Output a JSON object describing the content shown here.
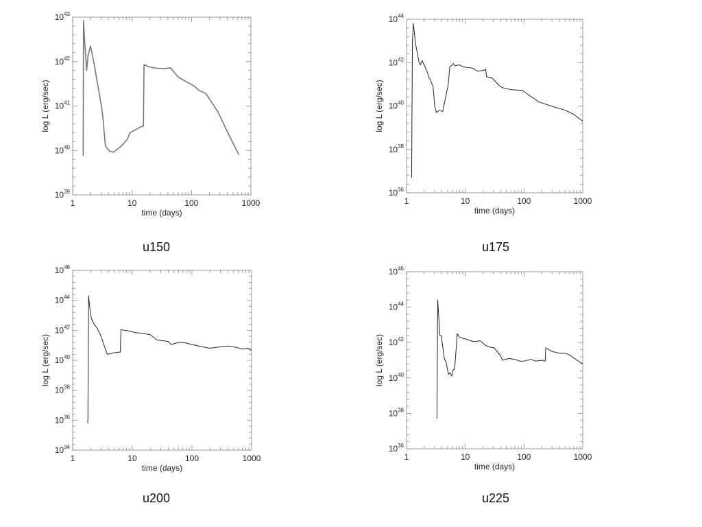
{
  "chart_data": [
    {
      "type": "line",
      "caption": "u150",
      "xlabel": "time (days)",
      "ylabel": "log L (erg/sec)",
      "xscale": "log",
      "yscale": "log",
      "xlim": [
        1,
        1000
      ],
      "ylim_exp": [
        39,
        43
      ],
      "xticks": [
        "1",
        "10",
        "100",
        "1000"
      ],
      "yticks_exp": [
        39,
        40,
        41,
        42,
        43
      ],
      "line_color": "#777777",
      "series": [
        {
          "x": [
            1.5,
            1.52,
            1.6,
            1.72,
            1.82,
            2.0,
            2.3,
            2.7,
            3.05,
            3.25,
            3.55,
            4.2,
            4.9,
            5.7,
            6.6,
            8.3,
            9.2,
            10.9,
            14.0,
            15.5,
            15.9,
            19.5,
            26.0,
            34.6,
            44.2,
            60.0,
            73.6,
            111.4,
            134.0,
            174.8,
            275.7,
            416.0,
            627.6
          ],
          "y_exp": [
            39.88,
            42.92,
            42.4,
            41.8,
            42.15,
            42.35,
            41.95,
            41.4,
            41.0,
            40.7,
            40.1,
            39.98,
            39.96,
            40.03,
            40.1,
            40.25,
            40.4,
            40.45,
            40.53,
            40.55,
            41.93,
            41.88,
            41.85,
            41.84,
            41.86,
            41.65,
            41.58,
            41.45,
            41.35,
            41.28,
            40.88,
            40.38,
            39.9
          ]
        }
      ]
    },
    {
      "type": "line",
      "caption": "u175",
      "xlabel": "time (days)",
      "ylabel": "log L (erg/sec)",
      "xscale": "log",
      "yscale": "log",
      "xlim": [
        1,
        1000
      ],
      "ylim_exp": [
        36,
        44
      ],
      "xticks": [
        "1",
        "10",
        "100",
        "1000"
      ],
      "yticks_exp": [
        36,
        38,
        40,
        42,
        44
      ],
      "line_color": "#222222",
      "series": [
        {
          "x": [
            1.22,
            1.26,
            1.31,
            1.42,
            1.64,
            1.73,
            1.84,
            2.08,
            2.33,
            2.4,
            2.5,
            2.83,
            3.02,
            3.22,
            3.58,
            4.14,
            4.5,
            5.1,
            5.45,
            6.29,
            6.73,
            7.78,
            9.32,
            10.9,
            13.2,
            16.3,
            21.5,
            22.2,
            23.1,
            28.4,
            37.7,
            42.4,
            50.8,
            61.3,
            93.0,
            108.1,
            128.7,
            155.0,
            173.4,
            199.1,
            289.5,
            512.7,
            719.1,
            1000.0
          ],
          "y_exp": [
            36.7,
            43.0,
            43.8,
            42.9,
            42.0,
            41.9,
            42.1,
            41.8,
            41.45,
            41.3,
            41.25,
            40.9,
            40.0,
            39.7,
            39.8,
            39.75,
            40.25,
            40.95,
            41.8,
            41.95,
            41.85,
            41.9,
            41.8,
            41.78,
            41.75,
            41.6,
            41.65,
            41.7,
            41.35,
            41.3,
            40.95,
            40.85,
            40.8,
            40.75,
            40.72,
            40.6,
            40.45,
            40.32,
            40.2,
            40.15,
            40.0,
            39.8,
            39.6,
            39.3
          ]
        }
      ]
    },
    {
      "type": "line",
      "caption": "u200",
      "xlabel": "time (days)",
      "ylabel": "log L (erg/sec)",
      "xscale": "log",
      "yscale": "log",
      "xlim": [
        1,
        1000
      ],
      "ylim_exp": [
        34,
        46
      ],
      "xticks": [
        "1",
        "10",
        "100",
        "1000"
      ],
      "yticks_exp": [
        34,
        36,
        38,
        40,
        42,
        44,
        46
      ],
      "line_color": "#222222",
      "series": [
        {
          "x": [
            1.79,
            1.8,
            1.85,
            2.0,
            2.1,
            2.3,
            2.6,
            3.0,
            3.5,
            3.8,
            4.4,
            4.9,
            6.3,
            6.45,
            7.2,
            9.0,
            11.0,
            15.0,
            20.0,
            26.0,
            34.0,
            40.0,
            45.0,
            60.0,
            80.0,
            100.0,
            150.0,
            200.0,
            300.0,
            400.0,
            500.0,
            700.0,
            850.0,
            1000.0
          ],
          "y_exp": [
            35.8,
            36.0,
            44.3,
            43.0,
            42.7,
            42.4,
            42.1,
            41.6,
            40.8,
            40.4,
            40.45,
            40.5,
            40.55,
            42.05,
            42.0,
            41.95,
            41.85,
            41.8,
            41.7,
            41.35,
            41.3,
            41.25,
            41.05,
            41.2,
            41.15,
            41.05,
            40.9,
            40.8,
            40.9,
            40.95,
            40.9,
            40.75,
            40.8,
            40.65
          ]
        }
      ]
    },
    {
      "type": "line",
      "caption": "u225",
      "xlabel": "time (days)",
      "ylabel": "log L (erg/sec)",
      "xscale": "log",
      "yscale": "log",
      "xlim": [
        1,
        1000
      ],
      "ylim_exp": [
        36,
        46
      ],
      "xticks": [
        "1",
        "10",
        "100",
        "1000"
      ],
      "yticks_exp": [
        36,
        38,
        40,
        42,
        44,
        46
      ],
      "line_color": "#222222",
      "series": [
        {
          "x": [
            3.28,
            3.3,
            3.4,
            3.7,
            3.9,
            4.2,
            4.4,
            4.7,
            5.2,
            5.5,
            5.9,
            6.2,
            6.6,
            7.3,
            8.0,
            10.0,
            14.0,
            18.0,
            22.0,
            26.0,
            31.0,
            40.0,
            43.0,
            55.0,
            70.0,
            85.0,
            100.0,
            130.0,
            160.0,
            200.0,
            230.0,
            234.0,
            300.0,
            400.0,
            500.0,
            600.0,
            800.0,
            1000.0
          ],
          "y_exp": [
            37.7,
            37.8,
            44.4,
            42.4,
            42.4,
            41.6,
            41.1,
            40.9,
            40.2,
            40.3,
            40.1,
            40.45,
            40.5,
            42.5,
            42.3,
            42.2,
            42.05,
            42.1,
            41.85,
            41.75,
            41.7,
            41.25,
            41.0,
            41.1,
            41.05,
            40.95,
            40.95,
            41.05,
            40.95,
            41.0,
            40.95,
            41.7,
            41.5,
            41.4,
            41.4,
            41.3,
            41.0,
            40.8
          ]
        }
      ]
    }
  ]
}
